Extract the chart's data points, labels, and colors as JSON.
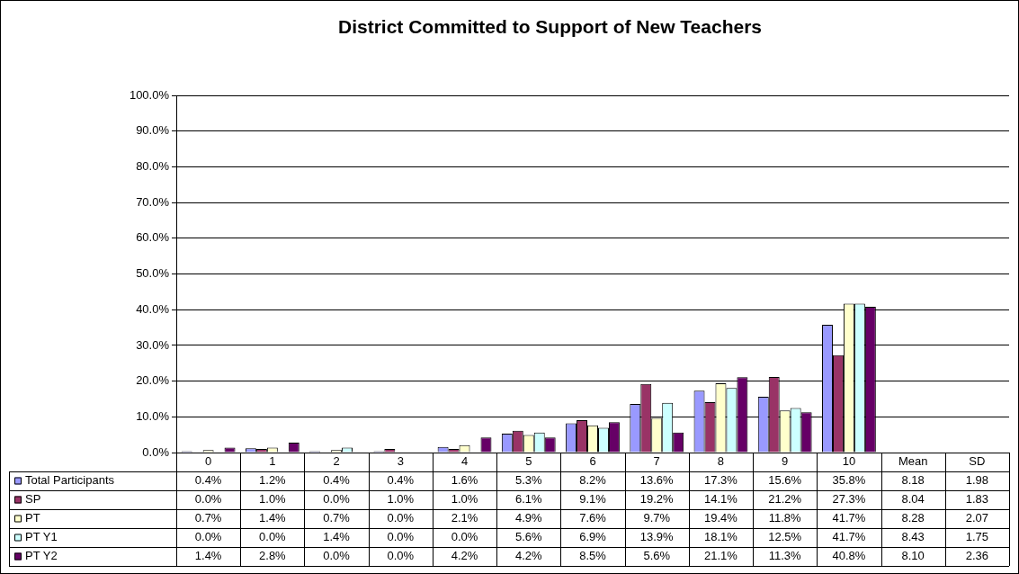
{
  "chart_data": {
    "type": "bar",
    "title": "District Committed to Support of New Teachers",
    "categories": [
      "0",
      "1",
      "2",
      "3",
      "4",
      "5",
      "6",
      "7",
      "8",
      "9",
      "10",
      "Mean",
      "SD"
    ],
    "ylim": [
      0,
      100
    ],
    "yticks": [
      {
        "value": 0,
        "label": "0.0%"
      },
      {
        "value": 10,
        "label": "10.0%"
      },
      {
        "value": 20,
        "label": "20.0%"
      },
      {
        "value": 30,
        "label": "30.0%"
      },
      {
        "value": 40,
        "label": "40.0%"
      },
      {
        "value": 50,
        "label": "50.0%"
      },
      {
        "value": 60,
        "label": "60.0%"
      },
      {
        "value": 70,
        "label": "70.0%"
      },
      {
        "value": 80,
        "label": "80.0%"
      },
      {
        "value": 90,
        "label": "90.0%"
      },
      {
        "value": 100,
        "label": "100.0%"
      }
    ],
    "grid": "y",
    "legend": "bottom",
    "series": [
      {
        "name": "Total Participants",
        "color": "#9999ff",
        "values": [
          0.4,
          1.2,
          0.4,
          0.4,
          1.6,
          5.3,
          8.2,
          13.6,
          17.3,
          15.6,
          35.8,
          null,
          null
        ],
        "value_labels": [
          "0.4%",
          "1.2%",
          "0.4%",
          "0.4%",
          "1.6%",
          "5.3%",
          "8.2%",
          "13.6%",
          "17.3%",
          "15.6%",
          "35.8%",
          "8.18",
          "1.98"
        ]
      },
      {
        "name": "SP",
        "color": "#993366",
        "values": [
          0.0,
          1.0,
          0.0,
          1.0,
          1.0,
          6.1,
          9.1,
          19.2,
          14.1,
          21.2,
          27.3,
          null,
          null
        ],
        "value_labels": [
          "0.0%",
          "1.0%",
          "0.0%",
          "1.0%",
          "1.0%",
          "6.1%",
          "9.1%",
          "19.2%",
          "14.1%",
          "21.2%",
          "27.3%",
          "8.04",
          "1.83"
        ]
      },
      {
        "name": "PT",
        "color": "#ffffcc",
        "values": [
          0.7,
          1.4,
          0.7,
          0.0,
          2.1,
          4.9,
          7.6,
          9.7,
          19.4,
          11.8,
          41.7,
          null,
          null
        ],
        "value_labels": [
          "0.7%",
          "1.4%",
          "0.7%",
          "0.0%",
          "2.1%",
          "4.9%",
          "7.6%",
          "9.7%",
          "19.4%",
          "11.8%",
          "41.7%",
          "8.28",
          "2.07"
        ]
      },
      {
        "name": "PT Y1",
        "color": "#ccffff",
        "values": [
          0.0,
          0.0,
          1.4,
          0.0,
          0.0,
          5.6,
          6.9,
          13.9,
          18.1,
          12.5,
          41.7,
          null,
          null
        ],
        "value_labels": [
          "0.0%",
          "0.0%",
          "1.4%",
          "0.0%",
          "0.0%",
          "5.6%",
          "6.9%",
          "13.9%",
          "18.1%",
          "12.5%",
          "41.7%",
          "8.43",
          "1.75"
        ]
      },
      {
        "name": "PT Y2",
        "color": "#660066",
        "values": [
          1.4,
          2.8,
          0.0,
          0.0,
          4.2,
          4.2,
          8.5,
          5.6,
          21.1,
          11.3,
          40.8,
          null,
          null
        ],
        "value_labels": [
          "1.4%",
          "2.8%",
          "0.0%",
          "0.0%",
          "4.2%",
          "4.2%",
          "8.5%",
          "5.6%",
          "21.1%",
          "11.3%",
          "40.8%",
          "8.10",
          "2.36"
        ]
      }
    ]
  }
}
